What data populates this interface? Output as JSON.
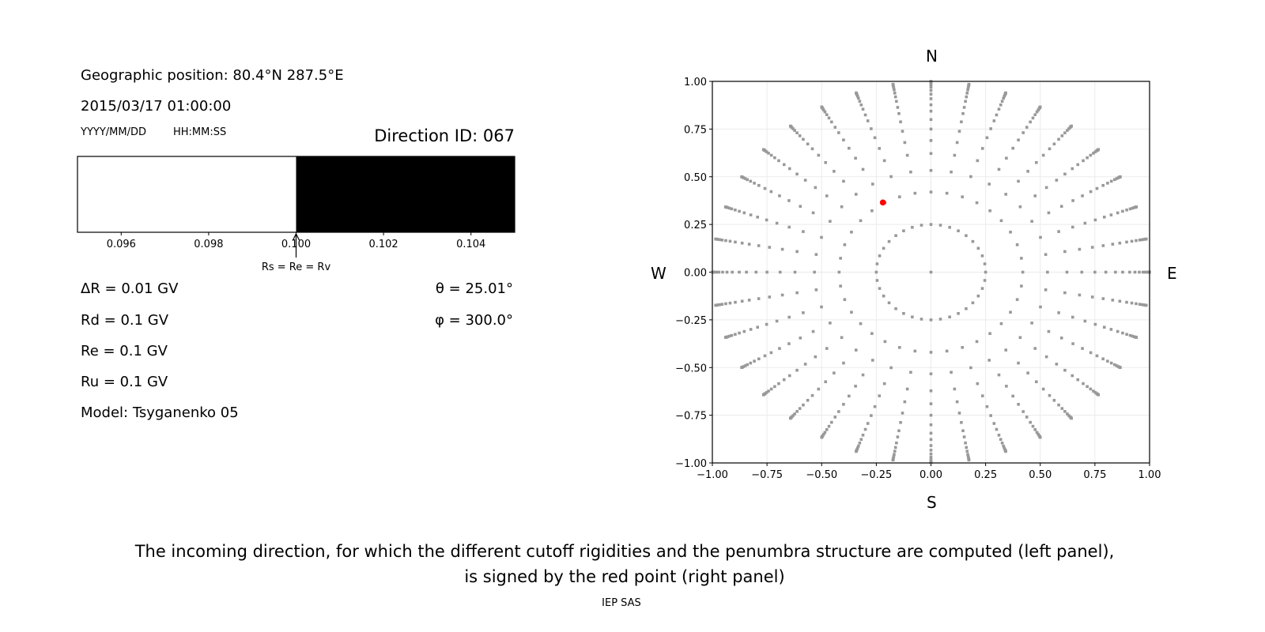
{
  "left_panel": {
    "geo_position": "Geographic position: 80.4°N 287.5°E",
    "datetime": "2015/03/17 01:00:00",
    "date_format": "YYYY/MM/DD",
    "time_format": "HH:MM:SS",
    "direction_id": "Direction ID: 067",
    "delta_r": "ΔR = 0.01 GV",
    "rd": "Rd = 0.1 GV",
    "re": "Re = 0.1 GV",
    "ru": "Ru = 0.1 GV",
    "model": "Model: Tsyganenko 05",
    "theta": "θ = 25.01°",
    "phi": "φ = 300.0°"
  },
  "chart_data": [
    {
      "type": "bar",
      "description_role": "penumbra structure",
      "xlim": [
        0.095,
        0.105
      ],
      "x_ticks": [
        0.096,
        0.098,
        0.1,
        0.102,
        0.104
      ],
      "x_tick_labels": [
        "0.096",
        "0.098",
        "0.100",
        "0.102",
        "0.104"
      ],
      "segments": [
        {
          "from": 0.095,
          "to": 0.1,
          "color": "#ffffff"
        },
        {
          "from": 0.1,
          "to": 0.105,
          "color": "#000000"
        }
      ],
      "annotation": {
        "x": 0.1,
        "text": "Rs = Re = Rv"
      }
    },
    {
      "type": "scatter",
      "xlim": [
        -1.0,
        1.0
      ],
      "ylim": [
        -1.0,
        1.0
      ],
      "x_tick_labels": [
        "−1.00",
        "−0.75",
        "−0.50",
        "−0.25",
        "0.00",
        "0.25",
        "0.50",
        "0.75",
        "1.00"
      ],
      "y_tick_labels": [
        "−1.00",
        "−0.75",
        "−0.50",
        "−0.25",
        "0.00",
        "0.25",
        "0.50",
        "0.75",
        "1.00"
      ],
      "ticks": [
        -1.0,
        -0.75,
        -0.5,
        -0.25,
        0.0,
        0.25,
        0.5,
        0.75,
        1.0
      ],
      "grid": true,
      "compass": {
        "north": "N",
        "south": "S",
        "west": "W",
        "east": "E"
      },
      "direction_grid": {
        "center": [
          0,
          0
        ],
        "azimuth_step_deg": 10,
        "radii": [
          0.25,
          0.42,
          0.533,
          0.622,
          0.69,
          0.75,
          0.8,
          0.844,
          0.877,
          0.909,
          0.933,
          0.953,
          0.97,
          0.981,
          0.99,
          0.995,
          0.998,
          1.0
        ],
        "color": "#999999"
      },
      "highlight_point": {
        "x": -0.22,
        "y": 0.365,
        "color": "#ff0000"
      }
    }
  ],
  "caption": {
    "line1": "The incoming direction, for which the different cutoff rigidities and the penumbra structure are computed (left panel),",
    "line2": "is signed by the red point (right panel)",
    "credit": "IEP SAS"
  }
}
